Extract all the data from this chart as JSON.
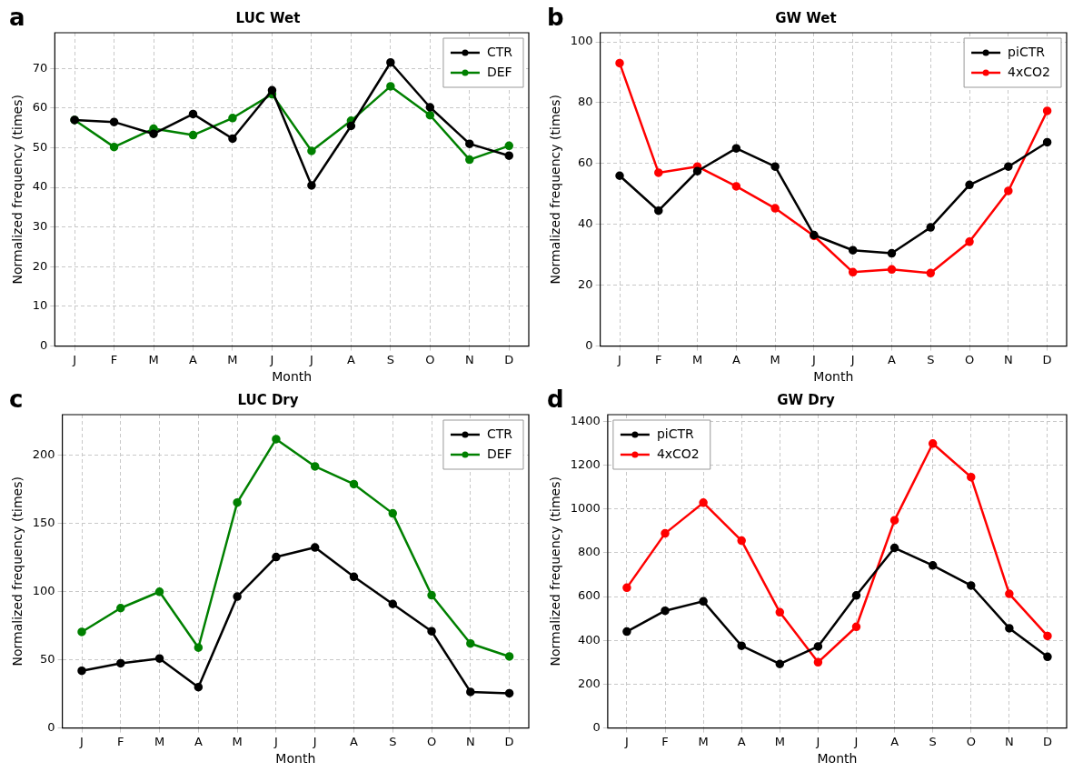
{
  "chart_data": [
    {
      "type": "line",
      "title": "LUC Wet",
      "xlabel": "Month",
      "ylabel": "Normalized frequency (times)",
      "annotations": [
        "a"
      ],
      "categories": [
        "J",
        "F",
        "M",
        "A",
        "M",
        "J",
        "J",
        "A",
        "S",
        "O",
        "N",
        "D"
      ],
      "series": [
        {
          "name": "CTR",
          "color": "#000000",
          "values": [
            57,
            56.5,
            53.5,
            58.5,
            52.3,
            64.5,
            40.5,
            55.5,
            71.5,
            60.2,
            51,
            48
          ]
        },
        {
          "name": "DEF",
          "color": "#008000",
          "values": [
            57,
            50.2,
            54.8,
            53.2,
            57.5,
            63.5,
            49.2,
            56.8,
            65.5,
            58.2,
            47,
            50.5
          ]
        }
      ],
      "ylim": [
        0,
        79
      ],
      "yticks": [
        0,
        10,
        20,
        30,
        40,
        50,
        60,
        70
      ],
      "grid": true,
      "legend": "top right",
      "marker": "circle",
      "line_style": "solid"
    },
    {
      "type": "line",
      "title": "GW Wet",
      "xlabel": "Month",
      "ylabel": "Normalized frequency (times)",
      "annotations": [
        "b"
      ],
      "categories": [
        "J",
        "F",
        "M",
        "A",
        "M",
        "J",
        "J",
        "A",
        "S",
        "O",
        "N",
        "D"
      ],
      "series": [
        {
          "name": "piCTR",
          "color": "#000000",
          "values": [
            56,
            44.5,
            57.5,
            65,
            59,
            36.5,
            31.5,
            30.5,
            39,
            53,
            59,
            67
          ]
        },
        {
          "name": "4xCO2",
          "color": "#ff0000",
          "values": [
            93,
            57,
            59,
            52.5,
            45.3,
            36.2,
            24.3,
            25.2,
            24,
            34.3,
            51,
            77.3
          ]
        }
      ],
      "ylim": [
        0,
        103
      ],
      "yticks": [
        0,
        20,
        40,
        60,
        80,
        100
      ],
      "grid": true,
      "legend": "top right",
      "marker": "circle",
      "line_style": "solid"
    },
    {
      "type": "line",
      "title": "LUC Dry",
      "xlabel": "Month",
      "ylabel": "Normalized frequency (times)",
      "annotations": [
        "c"
      ],
      "categories": [
        "J",
        "F",
        "M",
        "A",
        "M",
        "J",
        "J",
        "A",
        "S",
        "O",
        "N",
        "D"
      ],
      "series": [
        {
          "name": "CTR",
          "color": "#000000",
          "values": [
            42,
            47.5,
            51,
            30,
            96.5,
            125.5,
            132.5,
            111,
            91,
            71,
            26.5,
            25.5
          ]
        },
        {
          "name": "DEF",
          "color": "#008000",
          "values": [
            70.5,
            88,
            100,
            59,
            165.5,
            212,
            192,
            179,
            157.5,
            97.5,
            62,
            52.5
          ]
        }
      ],
      "ylim": [
        0,
        230
      ],
      "yticks": [
        0,
        50,
        100,
        150,
        200
      ],
      "grid": true,
      "legend": "top right",
      "marker": "circle",
      "line_style": "solid"
    },
    {
      "type": "line",
      "title": "GW Dry",
      "xlabel": "Month",
      "ylabel": "Normalized frequency (times)",
      "annotations": [
        "d"
      ],
      "categories": [
        "J",
        "F",
        "M",
        "A",
        "M",
        "J",
        "J",
        "A",
        "S",
        "O",
        "N",
        "D"
      ],
      "series": [
        {
          "name": "piCTR",
          "color": "#000000",
          "values": [
            440,
            535,
            578,
            375,
            292,
            372,
            605,
            822,
            742,
            650,
            455,
            325
          ]
        },
        {
          "name": "4xCO2",
          "color": "#ff0000",
          "values": [
            640,
            888,
            1028,
            855,
            528,
            300,
            462,
            948,
            1298,
            1145,
            612,
            420
          ]
        }
      ],
      "ylim": [
        0,
        1430
      ],
      "yticks": [
        0,
        200,
        400,
        600,
        800,
        1000,
        1200,
        1400
      ],
      "grid": true,
      "legend": "top left",
      "marker": "circle",
      "line_style": "solid"
    }
  ]
}
